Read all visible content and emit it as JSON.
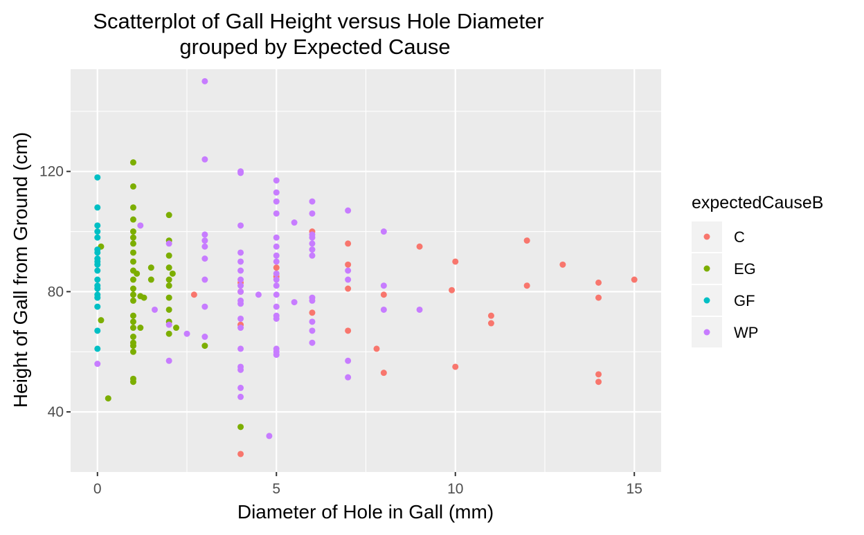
{
  "chart_data": {
    "type": "scatter",
    "title_lines": [
      "Scatterplot of Gall Height versus Hole Diameter",
      "grouped by Expected Cause"
    ],
    "xlabel": "Diameter of Hole in Gall (mm)",
    "ylabel": "Height of Gall from Ground (cm)",
    "xlim": [
      -0.75,
      15.75
    ],
    "ylim": [
      20,
      154
    ],
    "x_ticks": [
      0,
      5,
      10,
      15
    ],
    "x_tick_labels": [
      "0",
      "5",
      "10",
      "15"
    ],
    "y_ticks": [
      40,
      80,
      120
    ],
    "y_tick_labels": [
      "40",
      "80",
      "120"
    ],
    "grid": true,
    "legend": {
      "title": "expectedCauseB",
      "position": "right"
    },
    "series": [
      {
        "name": "C",
        "color": "#F8766D",
        "points": [
          [
            2.7,
            79
          ],
          [
            4,
            80
          ],
          [
            4,
            83
          ],
          [
            4,
            69
          ],
          [
            4,
            26
          ],
          [
            5,
            88
          ],
          [
            5,
            85
          ],
          [
            6,
            100
          ],
          [
            6,
            73
          ],
          [
            7,
            96
          ],
          [
            7,
            89
          ],
          [
            7,
            81
          ],
          [
            7,
            67
          ],
          [
            7.8,
            61
          ],
          [
            8,
            79
          ],
          [
            8,
            53
          ],
          [
            9,
            95
          ],
          [
            9.9,
            80.5
          ],
          [
            10,
            90
          ],
          [
            10,
            55
          ],
          [
            11,
            72
          ],
          [
            11,
            69.5
          ],
          [
            12,
            97
          ],
          [
            12,
            82
          ],
          [
            13,
            89
          ],
          [
            14,
            83
          ],
          [
            14,
            78
          ],
          [
            14,
            52.5
          ],
          [
            14,
            50
          ],
          [
            15,
            84
          ]
        ]
      },
      {
        "name": "EG",
        "color": "#7CAE00",
        "points": [
          [
            0.1,
            95
          ],
          [
            0.1,
            70.5
          ],
          [
            0.3,
            44.5
          ],
          [
            1,
            123
          ],
          [
            1,
            115
          ],
          [
            1,
            108
          ],
          [
            1,
            104
          ],
          [
            1,
            100
          ],
          [
            1,
            98
          ],
          [
            1,
            96
          ],
          [
            1,
            93
          ],
          [
            1,
            90
          ],
          [
            1,
            87
          ],
          [
            1,
            84
          ],
          [
            1,
            81
          ],
          [
            1,
            79
          ],
          [
            1,
            77
          ],
          [
            1,
            72
          ],
          [
            1,
            70
          ],
          [
            1,
            68
          ],
          [
            1,
            65
          ],
          [
            1,
            63
          ],
          [
            1,
            62
          ],
          [
            1,
            60
          ],
          [
            1,
            51
          ],
          [
            1,
            50
          ],
          [
            1.1,
            86
          ],
          [
            1.2,
            78.5
          ],
          [
            1.3,
            78
          ],
          [
            1.2,
            68
          ],
          [
            1.5,
            88
          ],
          [
            1.5,
            84
          ],
          [
            2,
            105.5
          ],
          [
            2,
            97
          ],
          [
            2,
            92
          ],
          [
            2,
            88
          ],
          [
            2,
            84
          ],
          [
            2,
            82
          ],
          [
            2,
            78
          ],
          [
            2,
            74
          ],
          [
            2,
            70
          ],
          [
            2,
            66
          ],
          [
            2.1,
            86
          ],
          [
            2.2,
            68
          ],
          [
            3,
            62
          ],
          [
            4,
            35
          ]
        ]
      },
      {
        "name": "GF",
        "color": "#00BFC4",
        "points": [
          [
            0,
            118
          ],
          [
            0,
            108
          ],
          [
            0,
            102
          ],
          [
            0,
            100
          ],
          [
            0,
            98
          ],
          [
            0,
            94
          ],
          [
            0,
            93
          ],
          [
            0,
            91
          ],
          [
            0,
            90
          ],
          [
            0,
            89
          ],
          [
            0,
            87
          ],
          [
            0,
            84
          ],
          [
            0,
            82
          ],
          [
            0,
            81
          ],
          [
            0,
            79
          ],
          [
            0,
            78
          ],
          [
            0,
            75
          ],
          [
            0,
            67
          ],
          [
            0,
            61
          ]
        ]
      },
      {
        "name": "WP",
        "color": "#C77CFF",
        "points": [
          [
            0,
            56
          ],
          [
            1.2,
            102
          ],
          [
            1.6,
            74
          ],
          [
            2,
            96
          ],
          [
            2,
            69
          ],
          [
            2,
            57
          ],
          [
            2.5,
            66
          ],
          [
            3,
            150
          ],
          [
            3,
            124
          ],
          [
            3,
            99
          ],
          [
            3,
            97
          ],
          [
            3,
            95
          ],
          [
            3,
            91
          ],
          [
            3,
            84
          ],
          [
            3,
            75
          ],
          [
            3,
            65
          ],
          [
            4,
            120
          ],
          [
            4,
            119.5
          ],
          [
            4,
            102
          ],
          [
            4,
            93
          ],
          [
            4,
            90
          ],
          [
            4,
            87
          ],
          [
            4,
            84
          ],
          [
            4,
            82
          ],
          [
            4,
            80
          ],
          [
            4,
            77
          ],
          [
            4,
            76
          ],
          [
            4,
            71
          ],
          [
            4,
            68
          ],
          [
            4,
            61
          ],
          [
            4,
            55
          ],
          [
            4,
            54
          ],
          [
            4,
            48
          ],
          [
            4,
            45
          ],
          [
            4.5,
            79
          ],
          [
            4.8,
            32
          ],
          [
            5,
            117
          ],
          [
            5,
            113
          ],
          [
            5,
            110
          ],
          [
            5,
            106
          ],
          [
            5,
            98
          ],
          [
            5,
            95
          ],
          [
            5,
            92
          ],
          [
            5,
            90
          ],
          [
            5,
            86
          ],
          [
            5,
            84
          ],
          [
            5,
            82
          ],
          [
            5,
            79
          ],
          [
            5,
            75
          ],
          [
            5,
            72
          ],
          [
            5,
            71
          ],
          [
            5,
            61
          ],
          [
            5,
            60
          ],
          [
            5,
            59
          ],
          [
            5.5,
            103
          ],
          [
            5.5,
            76.5
          ],
          [
            6,
            110
          ],
          [
            6,
            106
          ],
          [
            6,
            99
          ],
          [
            6,
            98
          ],
          [
            6,
            96
          ],
          [
            6,
            94
          ],
          [
            6,
            92
          ],
          [
            6,
            78
          ],
          [
            6,
            77
          ],
          [
            6,
            70
          ],
          [
            6,
            67
          ],
          [
            6,
            63
          ],
          [
            7,
            107
          ],
          [
            7,
            87
          ],
          [
            7,
            84
          ],
          [
            7,
            57
          ],
          [
            7,
            51.5
          ],
          [
            8,
            100
          ],
          [
            8,
            82
          ],
          [
            8,
            74
          ],
          [
            9,
            74
          ]
        ]
      }
    ]
  }
}
